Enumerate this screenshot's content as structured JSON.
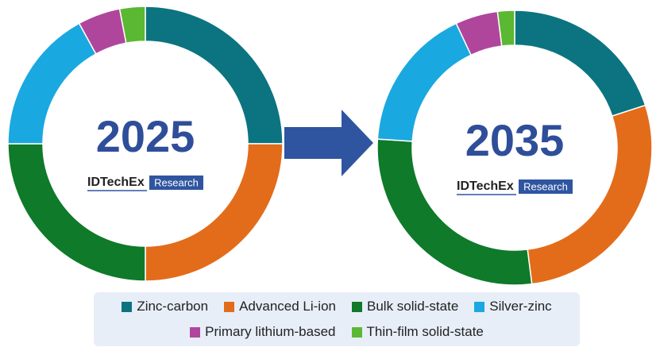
{
  "chart_data": [
    {
      "type": "donut",
      "title": "2025",
      "brand": "IDTechEx",
      "brand_tag": "Research",
      "categories": [
        "Zinc-carbon",
        "Advanced Li-ion",
        "Bulk solid-state",
        "Silver-zinc",
        "Primary lithium-based",
        "Thin-film solid-state"
      ],
      "values": [
        25,
        25,
        25,
        17,
        5,
        3
      ],
      "colors": [
        "#0b7480",
        "#e36c1a",
        "#0e7a2a",
        "#1aa8e0",
        "#b0469c",
        "#5bb832"
      ]
    },
    {
      "type": "donut",
      "title": "2035",
      "brand": "IDTechEx",
      "brand_tag": "Research",
      "categories": [
        "Zinc-carbon",
        "Advanced Li-ion",
        "Bulk solid-state",
        "Silver-zinc",
        "Primary lithium-based",
        "Thin-film solid-state"
      ],
      "values": [
        20,
        28,
        28,
        17,
        5,
        2
      ],
      "colors": [
        "#0b7480",
        "#e36c1a",
        "#0e7a2a",
        "#1aa8e0",
        "#b0469c",
        "#5bb832"
      ]
    }
  ]
}
